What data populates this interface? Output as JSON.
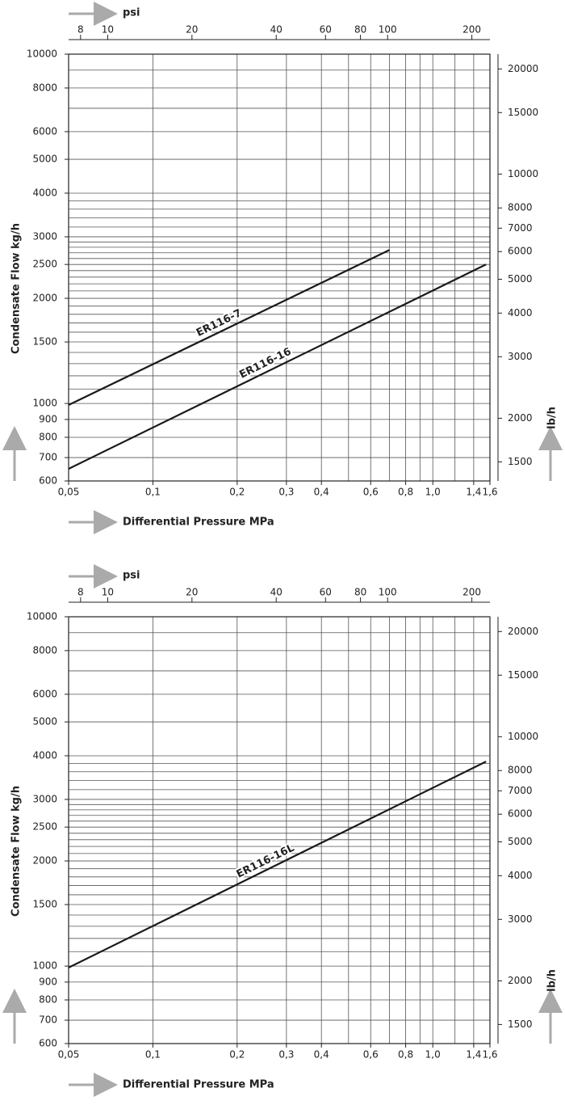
{
  "chart_data": [
    {
      "type": "line",
      "x_label": "Differential Pressure MPa",
      "y_label": "Condensate Flow kg/h",
      "x2_label": "psi",
      "y2_label": "lb/h",
      "x_scale": "log",
      "y_scale": "log",
      "grid": true,
      "xlim": [
        0.05,
        1.6
      ],
      "xticks": [
        {
          "value": 0.05,
          "label": "0,05"
        },
        {
          "value": 0.1,
          "label": "0,1"
        },
        {
          "value": 0.2,
          "label": "0,2"
        },
        {
          "value": 0.3,
          "label": "0,3"
        },
        {
          "value": 0.4,
          "label": "0,4"
        },
        {
          "value": 0.6,
          "label": "0,6"
        },
        {
          "value": 0.8,
          "label": "0,8"
        },
        {
          "value": 1,
          "label": "1,0"
        },
        {
          "value": 1.4,
          "label": "1,4"
        },
        {
          "value": 1.6,
          "label": "1,6"
        }
      ],
      "x2lim": [
        7.25,
        232.06
      ],
      "x2ticks": [
        8,
        10,
        20,
        40,
        60,
        80,
        100,
        200
      ],
      "ylim": [
        600,
        10000
      ],
      "yticks": [
        600,
        700,
        800,
        900,
        1000,
        1500,
        2000,
        2500,
        3000,
        4000,
        5000,
        6000,
        8000,
        10000
      ],
      "y2lim": [
        1322.8,
        22046
      ],
      "y2ticks": [
        1500,
        2000,
        3000,
        4000,
        5000,
        6000,
        7000,
        8000,
        10000,
        15000,
        20000
      ],
      "xgrid": [
        0.1,
        0.2,
        0.3,
        0.4,
        0.5,
        0.6,
        0.7,
        0.8,
        0.9,
        1,
        1.2,
        1.4
      ],
      "ygrid": [
        700,
        800,
        900,
        1000,
        1100,
        1200,
        1300,
        1400,
        1500,
        1600,
        1700,
        1800,
        1900,
        2000,
        2100,
        2200,
        2300,
        2400,
        2500,
        2600,
        2700,
        2800,
        2900,
        3000,
        3200,
        3400,
        3600,
        3800,
        4000,
        5000,
        6000,
        7000,
        8000,
        9000
      ],
      "series": [
        {
          "name": "ER116-7",
          "color": "#1a1a1a",
          "x": [
            0.05,
            0.7
          ],
          "values": [
            990,
            2750
          ]
        },
        {
          "name": "ER116-16",
          "color": "#1a1a1a",
          "x": [
            0.05,
            1.55
          ],
          "values": [
            650,
            2500
          ]
        }
      ]
    },
    {
      "type": "line",
      "x_label": "Differential Pressure MPa",
      "y_label": "Condensate Flow kg/h",
      "x2_label": "psi",
      "y2_label": "lb/h",
      "x_scale": "log",
      "y_scale": "log",
      "grid": true,
      "xlim": [
        0.05,
        1.6
      ],
      "xticks": [
        {
          "value": 0.05,
          "label": "0,05"
        },
        {
          "value": 0.1,
          "label": "0,1"
        },
        {
          "value": 0.2,
          "label": "0,2"
        },
        {
          "value": 0.3,
          "label": "0,3"
        },
        {
          "value": 0.4,
          "label": "0,4"
        },
        {
          "value": 0.6,
          "label": "0,6"
        },
        {
          "value": 0.8,
          "label": "0,8"
        },
        {
          "value": 1,
          "label": "1,0"
        },
        {
          "value": 1.4,
          "label": "1,4"
        },
        {
          "value": 1.6,
          "label": "1,6"
        }
      ],
      "x2lim": [
        7.25,
        232.06
      ],
      "x2ticks": [
        8,
        10,
        20,
        40,
        60,
        80,
        100,
        200
      ],
      "ylim": [
        600,
        10000
      ],
      "yticks": [
        600,
        700,
        800,
        900,
        1000,
        1500,
        2000,
        2500,
        3000,
        4000,
        5000,
        6000,
        8000,
        10000
      ],
      "y2lim": [
        1322.8,
        22046
      ],
      "y2ticks": [
        1500,
        2000,
        3000,
        4000,
        5000,
        6000,
        7000,
        8000,
        10000,
        15000,
        20000
      ],
      "xgrid": [
        0.1,
        0.2,
        0.3,
        0.4,
        0.5,
        0.6,
        0.7,
        0.8,
        0.9,
        1,
        1.2,
        1.4
      ],
      "ygrid": [
        700,
        800,
        900,
        1000,
        1100,
        1200,
        1300,
        1400,
        1500,
        1600,
        1700,
        1800,
        1900,
        2000,
        2100,
        2200,
        2300,
        2400,
        2500,
        2600,
        2700,
        2800,
        2900,
        3000,
        3200,
        3400,
        3600,
        3800,
        4000,
        5000,
        6000,
        7000,
        8000,
        9000
      ],
      "series": [
        {
          "name": "ER116-16L",
          "color": "#1a1a1a",
          "x": [
            0.05,
            1.55
          ],
          "values": [
            990,
            3850
          ]
        }
      ]
    }
  ]
}
